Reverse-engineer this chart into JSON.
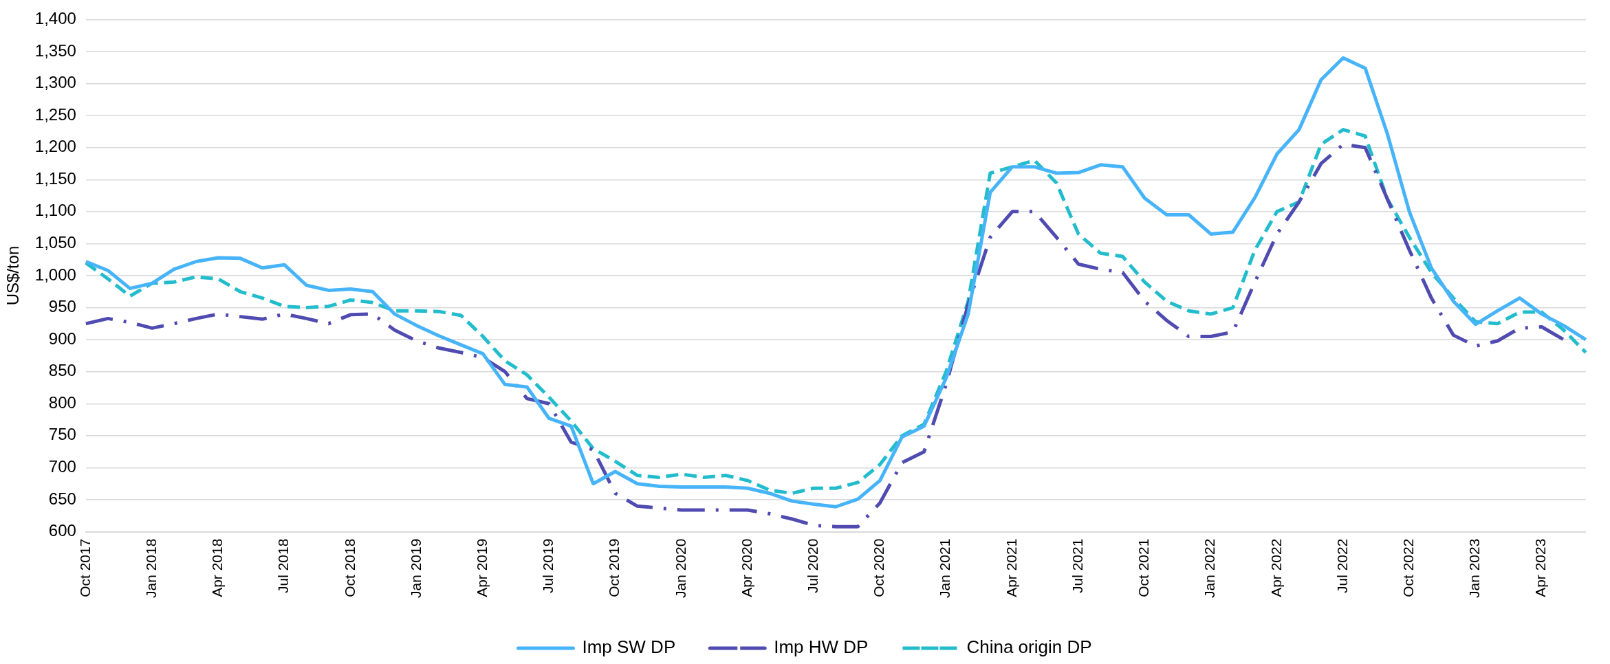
{
  "chart_data": {
    "type": "line",
    "ylabel": "US$/ton",
    "categories": [
      "Oct 2017",
      null,
      null,
      "Jan 2018",
      null,
      null,
      "Apr 2018",
      null,
      null,
      "Jul 2018",
      null,
      null,
      "Oct 2018",
      null,
      null,
      "Jan 2019",
      null,
      null,
      "Apr 2019",
      null,
      null,
      "Jul 2019",
      null,
      null,
      "Oct 2019",
      null,
      null,
      "Jan 2020",
      null,
      null,
      "Apr 2020",
      null,
      null,
      "Jul 2020",
      null,
      null,
      "Oct 2020",
      null,
      null,
      "Jan 2021",
      null,
      null,
      "Apr 2021",
      null,
      null,
      "Jul 2021",
      null,
      null,
      "Oct 2021",
      null,
      null,
      "Jan 2022",
      null,
      null,
      "Apr 2022",
      null,
      null,
      "Jul 2022",
      null,
      null,
      "Oct 2022",
      null,
      null,
      "Jan 2023",
      null,
      null,
      "Apr 2023",
      null,
      null
    ],
    "series": [
      {
        "name": "Imp SW DP",
        "color": "#47b4f9",
        "line_style": "solid",
        "values": [
          1022,
          1008,
          980,
          988,
          1010,
          1022,
          1028,
          1027,
          1012,
          1017,
          985,
          977,
          979,
          975,
          940,
          922,
          906,
          892,
          878,
          830,
          826,
          777,
          765,
          675,
          694,
          675,
          671,
          670,
          670,
          670,
          668,
          660,
          648,
          643,
          639,
          651,
          680,
          748,
          765,
          840,
          940,
          1130,
          1170,
          1170,
          1160,
          1161,
          1173,
          1170,
          1121,
          1095,
          1095,
          1065,
          1068,
          1122,
          1190,
          1228,
          1306,
          1340,
          1324,
          1222,
          1100,
          1012,
          960,
          924,
          945,
          965,
          940,
          922,
          900
        ]
      },
      {
        "name": "Imp HW DP",
        "color": "#4f4bb0",
        "line_style": "dashdot",
        "values": [
          925,
          933,
          927,
          918,
          925,
          933,
          940,
          936,
          932,
          940,
          933,
          925,
          939,
          940,
          915,
          898,
          887,
          880,
          872,
          850,
          808,
          800,
          740,
          728,
          660,
          640,
          637,
          634,
          634,
          634,
          634,
          628,
          620,
          610,
          608,
          608,
          645,
          708,
          725,
          830,
          955,
          1060,
          1100,
          1100,
          1060,
          1018,
          1010,
          1005,
          960,
          930,
          905,
          905,
          912,
          990,
          1065,
          1115,
          1175,
          1205,
          1200,
          1120,
          1040,
          965,
          907,
          890,
          898,
          918,
          920,
          900,
          null
        ]
      },
      {
        "name": "China origin DP",
        "color": "#22bccc",
        "line_style": "dashed",
        "values": [
          1020,
          995,
          968,
          988,
          990,
          998,
          995,
          975,
          965,
          952,
          950,
          952,
          962,
          958,
          945,
          945,
          944,
          938,
          905,
          867,
          845,
          810,
          773,
          730,
          710,
          688,
          685,
          690,
          685,
          688,
          680,
          665,
          660,
          668,
          668,
          677,
          705,
          750,
          768,
          850,
          960,
          1160,
          1170,
          1180,
          1145,
          1065,
          1035,
          1030,
          990,
          960,
          945,
          940,
          950,
          1040,
          1100,
          1115,
          1205,
          1228,
          1218,
          1120,
          1060,
          1005,
          965,
          928,
          925,
          943,
          943,
          915,
          880
        ]
      }
    ],
    "ylim": [
      600,
      1400
    ],
    "yticks": [
      {
        "value": 600,
        "label": "600"
      },
      {
        "value": 650,
        "label": "650"
      },
      {
        "value": 700,
        "label": "700"
      },
      {
        "value": 750,
        "label": "750"
      },
      {
        "value": 800,
        "label": "800"
      },
      {
        "value": 850,
        "label": "850"
      },
      {
        "value": 900,
        "label": "900"
      },
      {
        "value": 950,
        "label": "950"
      },
      {
        "value": 1000,
        "label": "1,000"
      },
      {
        "value": 1050,
        "label": "1,050"
      },
      {
        "value": 1100,
        "label": "1,100"
      },
      {
        "value": 1150,
        "label": "1,150"
      },
      {
        "value": 1200,
        "label": "1,200"
      },
      {
        "value": 1250,
        "label": "1,250"
      },
      {
        "value": 1300,
        "label": "1,300"
      },
      {
        "value": 1350,
        "label": "1,350"
      },
      {
        "value": 1400,
        "label": "1,400"
      }
    ],
    "grid": "y",
    "legend": "bottom",
    "marker": "none"
  }
}
